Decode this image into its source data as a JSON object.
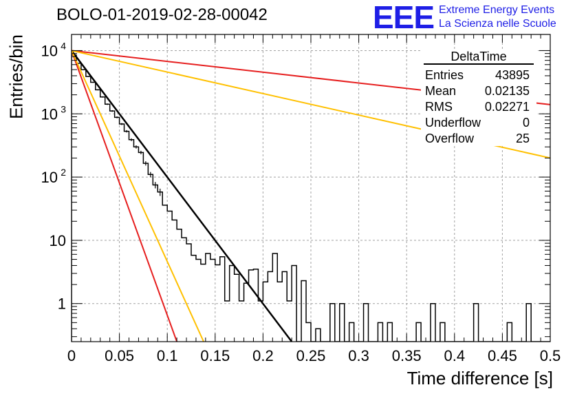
{
  "header": {
    "title": "BOLO-01-2019-02-28-00042",
    "logo_text": "EEE",
    "logo_line1": "Extreme Energy Events",
    "logo_line2": "La Scienza nelle Scuole",
    "logo_color": "#1e1ee6"
  },
  "stats_box": {
    "title": "DeltaTime",
    "rows": [
      {
        "label": "Entries",
        "value": "43895"
      },
      {
        "label": "Mean",
        "value": "0.02135"
      },
      {
        "label": "RMS",
        "value": "0.02271"
      },
      {
        "label": "Underflow",
        "value": "0"
      },
      {
        "label": "Overflow",
        "value": "25"
      }
    ]
  },
  "chart_data": {
    "type": "histogram",
    "xlabel": "Time difference [s]",
    "ylabel": "Entries/bin",
    "xlim": [
      0,
      0.5
    ],
    "ylim": [
      0.25,
      18000
    ],
    "yscale": "log",
    "grid": true,
    "x_ticks": [
      "0",
      "0.05",
      "0.1",
      "0.15",
      "0.2",
      "0.25",
      "0.3",
      "0.35",
      "0.4",
      "0.45",
      "0.5"
    ],
    "y_ticks": [
      {
        "value": 1,
        "label": "1"
      },
      {
        "value": 10,
        "label": "10"
      },
      {
        "value": 100,
        "label": "10",
        "exp": "2"
      },
      {
        "value": 1000,
        "label": "10",
        "exp": "3"
      },
      {
        "value": 10000,
        "label": "10",
        "exp": "4"
      }
    ],
    "bin_width": 0.005,
    "histogram": [
      8500,
      6300,
      5000,
      3900,
      3150,
      2400,
      1850,
      1420,
      1110,
      880,
      690,
      530,
      390,
      300,
      245,
      165,
      110,
      75,
      58,
      36,
      29,
      21,
      15,
      11,
      8.8,
      5.8,
      5.0,
      4.2,
      6.2,
      5.0,
      4.1,
      5.5,
      1.1,
      4.0,
      2.9,
      1.1,
      2.1,
      3.4,
      3.5,
      1.1,
      2.2,
      3.2,
      6.2,
      2.2,
      3.2,
      1.1,
      4.0,
      0,
      2.3,
      0.5,
      0,
      0.4,
      0,
      0,
      1,
      0,
      1,
      0,
      0.5,
      0,
      0,
      1,
      0,
      0,
      0.5,
      0,
      0.5,
      0,
      0,
      0,
      0,
      0,
      0.5,
      0,
      0,
      1,
      0,
      0.5,
      0,
      0,
      0,
      0,
      0,
      0,
      1,
      0,
      0,
      0,
      0,
      0,
      0,
      0.5,
      0,
      0,
      0,
      1,
      0,
      0,
      0,
      0
    ],
    "fits": [
      {
        "color": "#000000",
        "x": [
          0,
          0.23
        ],
        "y": [
          10000,
          0.25
        ]
      },
      {
        "color": "#e61e1e",
        "x": [
          0,
          0.11
        ],
        "y": [
          10000,
          0.25
        ]
      },
      {
        "color": "#ffc000",
        "x": [
          0,
          0.138
        ],
        "y": [
          10000,
          0.25
        ]
      },
      {
        "color": "#e61e1e",
        "x": [
          0,
          0.5
        ],
        "y": [
          10000,
          1400
        ]
      },
      {
        "color": "#ffc000",
        "x": [
          0,
          0.5
        ],
        "y": [
          10000,
          200
        ]
      }
    ]
  }
}
